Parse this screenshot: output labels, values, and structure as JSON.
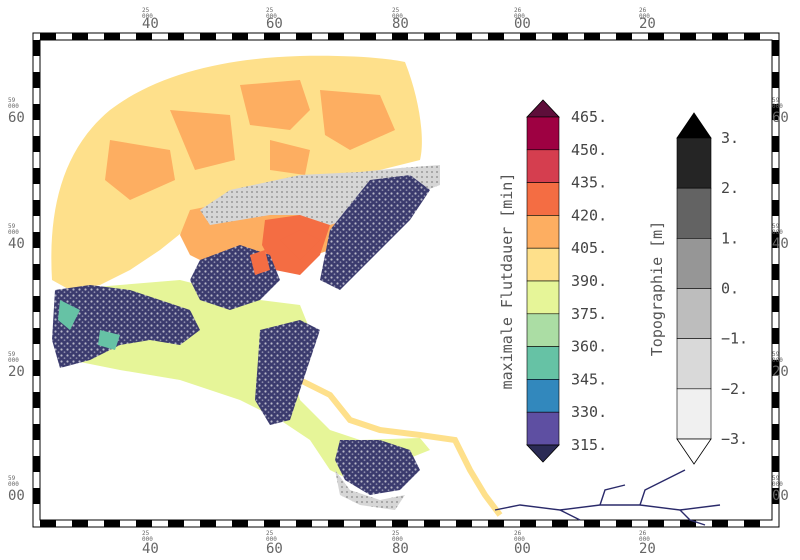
{
  "map": {
    "frame": {
      "top_ticks": [
        {
          "deg": "25",
          "sub": "000",
          "val": "40"
        },
        {
          "deg": "25",
          "sub": "000",
          "val": "60"
        },
        {
          "deg": "25",
          "sub": "000",
          "val": "80"
        },
        {
          "deg": "26",
          "sub": "000",
          "val": "00"
        },
        {
          "deg": "26",
          "sub": "000",
          "val": "20"
        }
      ],
      "bottom_ticks": [
        {
          "deg": "25",
          "sub": "000",
          "val": "40"
        },
        {
          "deg": "25",
          "sub": "000",
          "val": "60"
        },
        {
          "deg": "25",
          "sub": "000",
          "val": "80"
        },
        {
          "deg": "26",
          "sub": "000",
          "val": "00"
        },
        {
          "deg": "26",
          "sub": "000",
          "val": "20"
        }
      ],
      "left_ticks": [
        {
          "deg": "59",
          "sub": "000",
          "val": "60"
        },
        {
          "deg": "59",
          "sub": "000",
          "val": "40"
        },
        {
          "deg": "59",
          "sub": "000",
          "val": "20"
        },
        {
          "deg": "59",
          "sub": "000",
          "val": "00"
        }
      ],
      "right_ticks": [
        {
          "deg": "59",
          "sub": "000",
          "val": "60"
        },
        {
          "deg": "59",
          "sub": "000",
          "val": "40"
        },
        {
          "deg": "59",
          "sub": "000",
          "val": "20"
        },
        {
          "deg": "59",
          "sub": "000",
          "val": "00"
        }
      ]
    },
    "flood_legend": {
      "title": "maximale Flutdauer [min]",
      "labels": [
        "465.",
        "450.",
        "435.",
        "420.",
        "405.",
        "390.",
        "375.",
        "360.",
        "345.",
        "330.",
        "315."
      ],
      "colors": [
        "#5e0e3a",
        "#9e0142",
        "#d53e4f",
        "#f46d43",
        "#fdae61",
        "#fee08b",
        "#e6f598",
        "#abdda4",
        "#66c2a5",
        "#3288bd",
        "#5e4fa2",
        "#2b2b55"
      ]
    },
    "topo_legend": {
      "title": "Topographie [m]",
      "labels": [
        "3.",
        "2.",
        "1.",
        "0.",
        "−1.",
        "−2.",
        "−3."
      ],
      "colors": [
        "#000000",
        "#252525",
        "#636363",
        "#969696",
        "#bdbdbd",
        "#d9d9d9",
        "#f0f0f0",
        "#ffffff"
      ]
    }
  }
}
